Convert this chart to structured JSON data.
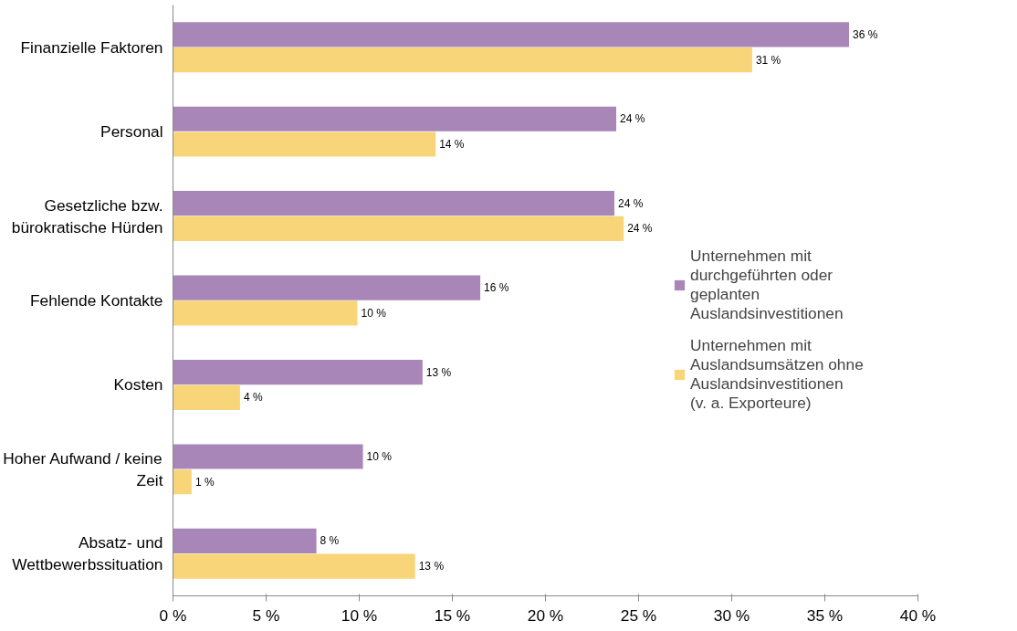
{
  "chart_data": {
    "type": "bar",
    "orientation": "horizontal",
    "categories": [
      "Finanzielle Faktoren",
      "Personal",
      "Gesetzliche bzw. bürokratische Hürden",
      "Fehlende Kontakte",
      "Kosten",
      "Hoher Aufwand / keine Zeit",
      "Absatz- und Wettbewerbssituation"
    ],
    "series": [
      {
        "name": "Unternehmen mit durchgeführten oder geplanten Auslandsinvestitionen",
        "color": "#a886b8",
        "values": [
          36.3,
          23.8,
          23.7,
          16.5,
          13.4,
          10.2,
          7.7
        ],
        "value_labels": [
          "36 %",
          "24 %",
          "24 %",
          "16 %",
          "13 %",
          "10 %",
          "8 %"
        ]
      },
      {
        "name": "Unternehmen mit Auslandsumsätzen ohne Auslandsinvestitionen (v. a. Exporteure)",
        "color": "#f9d57a",
        "values": [
          31.1,
          14.1,
          24.2,
          9.9,
          3.6,
          1.0,
          13.0
        ],
        "value_labels": [
          "31 %",
          "14 %",
          "24 %",
          "10 %",
          "4 %",
          "1 %",
          "13 %"
        ]
      }
    ],
    "xlim": [
      0,
      40
    ],
    "xticks": [
      {
        "value": 0,
        "label": "0 %"
      },
      {
        "value": 5,
        "label": "5 %"
      },
      {
        "value": 10,
        "label": "10 %"
      },
      {
        "value": 15,
        "label": "15 %"
      },
      {
        "value": 20,
        "label": "20 %"
      },
      {
        "value": 25,
        "label": "25 %"
      },
      {
        "value": 30,
        "label": "30 %"
      },
      {
        "value": 35,
        "label": "35 %"
      },
      {
        "value": 40,
        "label": "40 %"
      }
    ],
    "grid": false,
    "legend": "right"
  }
}
